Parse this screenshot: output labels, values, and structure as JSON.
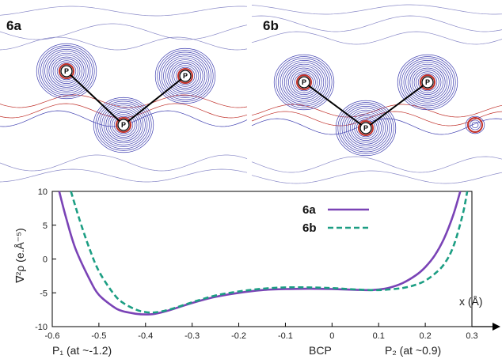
{
  "maps": [
    {
      "label": "6a",
      "atoms": [
        "P",
        "P",
        "P"
      ]
    },
    {
      "label": "6b",
      "atoms": [
        "P",
        "P",
        "P"
      ]
    }
  ],
  "colors": {
    "contour_negative": "#3f3fb0",
    "contour_positive": "#c0302a",
    "series_6a": "#7a43b6",
    "series_6b": "#1c9e83"
  },
  "chart_data": {
    "type": "line",
    "title": "",
    "xlabel": "x (Å)",
    "ylabel_text": "∇²ρ (e.Å⁻⁵)",
    "xlim": [
      -0.6,
      0.3
    ],
    "ylim": [
      -10,
      10
    ],
    "xticks": [
      "-0.6",
      "-0.5",
      "-0.4",
      "-0.3",
      "-0.2",
      "-0.1",
      "0",
      "0.1",
      "0.2",
      "0.3"
    ],
    "yticks": [
      "10",
      "5",
      "0",
      "-5",
      "-10"
    ],
    "x_annotations": [
      "P₁ (at ~-1.2)",
      "BCP",
      "P₂ (at ~0.9)"
    ],
    "legend_placement": "top-right",
    "series": [
      {
        "name": "6a",
        "style": "solid",
        "x": [
          -0.585,
          -0.57,
          -0.55,
          -0.52,
          -0.5,
          -0.47,
          -0.45,
          -0.42,
          -0.4,
          -0.38,
          -0.35,
          -0.3,
          -0.25,
          -0.2,
          -0.15,
          -0.1,
          -0.05,
          0.0,
          0.05,
          0.08,
          0.1,
          0.12,
          0.15,
          0.18,
          0.2,
          0.22,
          0.24,
          0.26,
          0.275
        ],
        "y": [
          10,
          6.0,
          1.5,
          -3.0,
          -5.3,
          -7.0,
          -7.7,
          -8.1,
          -8.2,
          -8.1,
          -7.6,
          -6.5,
          -5.6,
          -5.0,
          -4.6,
          -4.45,
          -4.4,
          -4.45,
          -4.55,
          -4.6,
          -4.5,
          -4.3,
          -3.6,
          -2.4,
          -1.2,
          0.5,
          3.0,
          6.5,
          10
        ]
      },
      {
        "name": "6b",
        "style": "dashed",
        "x": [
          -0.56,
          -0.54,
          -0.52,
          -0.5,
          -0.47,
          -0.45,
          -0.42,
          -0.4,
          -0.38,
          -0.35,
          -0.3,
          -0.25,
          -0.2,
          -0.15,
          -0.1,
          -0.05,
          0.0,
          0.05,
          0.1,
          0.15,
          0.18,
          0.2,
          0.22,
          0.24,
          0.26,
          0.28,
          0.29
        ],
        "y": [
          10,
          5.5,
          1.5,
          -1.8,
          -5.0,
          -6.4,
          -7.5,
          -7.85,
          -7.9,
          -7.5,
          -6.4,
          -5.4,
          -4.8,
          -4.4,
          -4.2,
          -4.2,
          -4.3,
          -4.5,
          -4.6,
          -4.3,
          -3.8,
          -3.2,
          -2.2,
          -0.8,
          1.8,
          6.5,
          10
        ]
      }
    ]
  }
}
